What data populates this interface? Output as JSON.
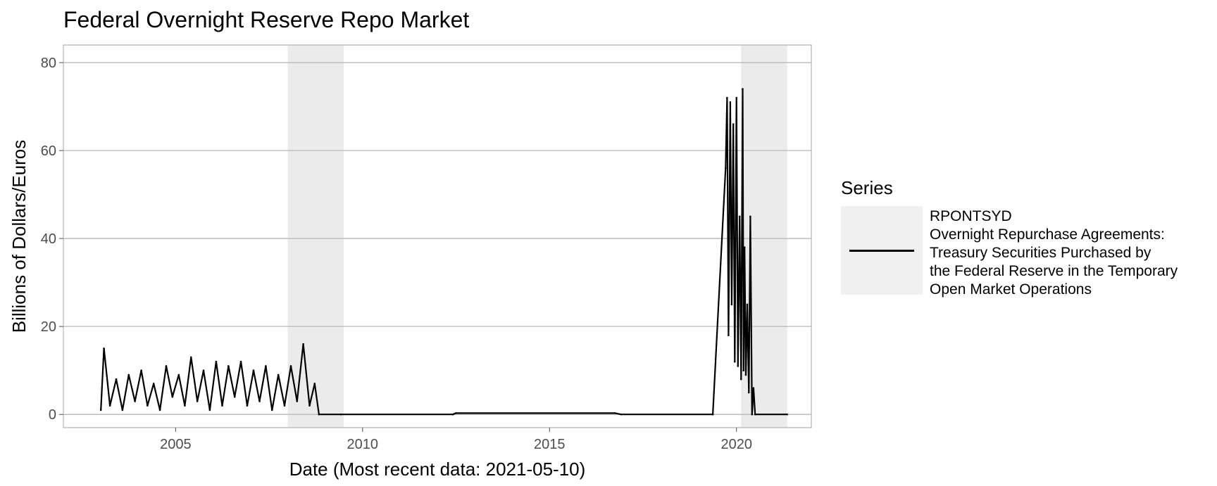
{
  "chart_data": {
    "type": "line",
    "title": "Federal Overnight Reserve Repo Market",
    "xlabel": "Date (Most recent data: 2021-05-10)",
    "ylabel": "Billions of Dollars/Euros",
    "xlim": [
      "2002-01-01",
      "2022-01-01"
    ],
    "ylim": [
      -3,
      84
    ],
    "x_ticks": [
      "2005",
      "2010",
      "2015",
      "2020"
    ],
    "y_ticks": [
      0,
      20,
      40,
      60,
      80
    ],
    "grid": "horizontal",
    "legend": {
      "title": "Series",
      "position": "right",
      "label": "RPONTSYD\nOvernight Repurchase Agreements:\nTreasury Securities Purchased by\nthe Federal Reserve in the Temporary\nOpen Market Operations"
    },
    "shaded_periods": [
      {
        "start": "2008-01-01",
        "end": "2009-06-30"
      },
      {
        "start": "2020-02-15",
        "end": "2021-05-10"
      }
    ],
    "series": [
      {
        "name": "RPONTSYD",
        "color": "#000000",
        "x": [
          "2003-01-02",
          "2003-02-01",
          "2003-04-01",
          "2003-06-01",
          "2003-08-01",
          "2003-10-01",
          "2003-12-01",
          "2004-02-01",
          "2004-04-01",
          "2004-06-01",
          "2004-08-01",
          "2004-10-01",
          "2004-12-01",
          "2005-02-01",
          "2005-04-01",
          "2005-06-01",
          "2005-08-01",
          "2005-10-01",
          "2005-12-01",
          "2006-02-01",
          "2006-04-01",
          "2006-06-01",
          "2006-08-01",
          "2006-10-01",
          "2006-12-01",
          "2007-02-01",
          "2007-04-01",
          "2007-06-01",
          "2007-08-01",
          "2007-10-01",
          "2007-12-01",
          "2008-02-01",
          "2008-04-01",
          "2008-06-01",
          "2008-08-01",
          "2008-09-20",
          "2008-11-01",
          "2009-06-01",
          "2012-06-01",
          "2012-07-01",
          "2016-10-01",
          "2016-12-01",
          "2019-05-15",
          "2019-09-17",
          "2019-10-01",
          "2019-10-15",
          "2019-11-01",
          "2019-11-15",
          "2019-12-01",
          "2019-12-15",
          "2020-01-01",
          "2020-01-15",
          "2020-02-01",
          "2020-02-15",
          "2020-03-01",
          "2020-03-10",
          "2020-03-20",
          "2020-04-01",
          "2020-04-15",
          "2020-05-01",
          "2020-05-15",
          "2020-06-01",
          "2020-06-15",
          "2020-07-01",
          "2021-05-10"
        ],
        "y": [
          1,
          15,
          2,
          8,
          1,
          9,
          3,
          10,
          2,
          7,
          1,
          11,
          4,
          9,
          2,
          13,
          3,
          10,
          1,
          12,
          2,
          11,
          4,
          12,
          2,
          10,
          3,
          11,
          1,
          9,
          2,
          11,
          3,
          16,
          2,
          7,
          0,
          0,
          0,
          0.3,
          0.3,
          0,
          0,
          56,
          72,
          18,
          71,
          25,
          66,
          12,
          72,
          11,
          45,
          8,
          74,
          10,
          38,
          9,
          25,
          5,
          45,
          0,
          6,
          0,
          0
        ]
      }
    ]
  }
}
